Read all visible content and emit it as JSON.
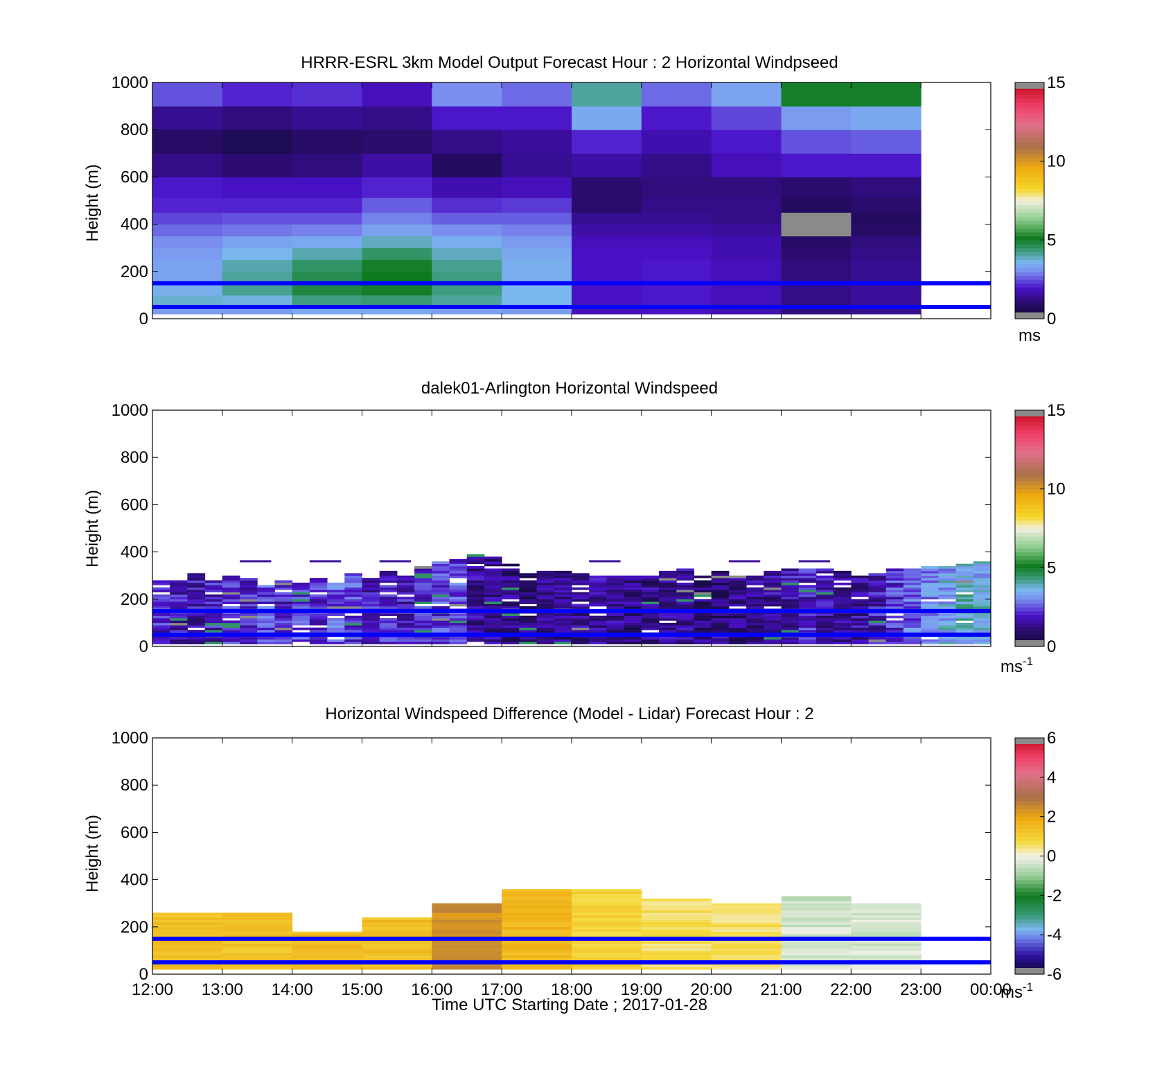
{
  "chart_data": [
    {
      "type": "heatmap",
      "title": "HRRR-ESRL 3km Model Output   Forecast Hour : 2 Horizontal Windpseed",
      "ylabel": "Height (m)",
      "ylim": [
        0,
        1000
      ],
      "yticks": [
        "0",
        "200",
        "400",
        "600",
        "800",
        "1000"
      ],
      "xticks": [
        "12:00",
        "13:00",
        "14:00",
        "15:00",
        "16:00",
        "17:00",
        "18:00",
        "19:00",
        "20:00",
        "21:00",
        "22:00",
        "23:00",
        "00:00"
      ],
      "colorbar": {
        "ticks": [
          "0",
          "5",
          "10",
          "15"
        ],
        "unit": "ms",
        "unit_sup": "",
        "range": [
          0,
          15
        ]
      },
      "reference_lines_m": [
        150,
        50
      ],
      "reference_line_color": "#0000ff",
      "model_hours": [
        "12:00",
        "13:00",
        "14:00",
        "15:00",
        "16:00",
        "17:00",
        "18:00",
        "19:00",
        "20:00",
        "21:00",
        "22:00"
      ],
      "model_levels_m": [
        25,
        75,
        125,
        175,
        225,
        275,
        325,
        375,
        425,
        475,
        550,
        650,
        750,
        850,
        950
      ],
      "model_speed_ms": [
        [
          3.2,
          3.2,
          3.4,
          3.4,
          3.3,
          3.2,
          1.8,
          1.9,
          1.7,
          1.2,
          1.4
        ],
        [
          3.8,
          3.7,
          4.3,
          4.4,
          4.1,
          3.6,
          1.9,
          2.0,
          1.8,
          1.3,
          1.5
        ],
        [
          3.5,
          4.2,
          4.8,
          5.0,
          4.3,
          3.6,
          1.9,
          2.0,
          1.8,
          1.3,
          1.5
        ],
        [
          3.3,
          4.1,
          4.7,
          5.1,
          4.3,
          3.5,
          1.9,
          2.0,
          1.8,
          1.2,
          1.4
        ],
        [
          3.3,
          4.0,
          4.5,
          5.0,
          4.2,
          3.5,
          1.9,
          2.0,
          1.8,
          1.2,
          1.4
        ],
        [
          3.2,
          3.6,
          4.0,
          4.5,
          3.9,
          3.4,
          1.9,
          1.9,
          1.7,
          1.1,
          1.3
        ],
        [
          3.0,
          3.3,
          3.4,
          3.9,
          3.5,
          3.2,
          1.8,
          1.8,
          1.7,
          0.9,
          1.2
        ],
        [
          2.7,
          2.8,
          2.9,
          3.3,
          3.0,
          2.9,
          1.6,
          1.6,
          1.5,
          6.8,
          0.9
        ],
        [
          2.4,
          2.5,
          2.5,
          2.9,
          2.6,
          2.6,
          1.4,
          1.4,
          1.3,
          6.8,
          0.8
        ],
        [
          2.1,
          2.1,
          2.1,
          2.6,
          2.2,
          2.3,
          1.0,
          1.3,
          1.3,
          0.8,
          1.0
        ],
        [
          2.0,
          1.9,
          1.9,
          2.1,
          1.7,
          1.8,
          1.0,
          1.2,
          1.2,
          1.0,
          1.2
        ],
        [
          1.3,
          1.1,
          1.2,
          1.6,
          0.8,
          1.4,
          1.6,
          1.3,
          1.8,
          2.0,
          2.0
        ],
        [
          0.9,
          0.6,
          0.9,
          1.0,
          1.3,
          1.5,
          2.1,
          1.7,
          2.0,
          2.5,
          2.6
        ],
        [
          1.4,
          1.2,
          1.4,
          1.3,
          2.0,
          2.0,
          3.4,
          2.0,
          2.4,
          3.2,
          3.4
        ],
        [
          2.5,
          2.1,
          2.2,
          1.8,
          3.0,
          2.7,
          4.1,
          2.7,
          3.3,
          5.0,
          5.0
        ]
      ]
    },
    {
      "type": "heatmap",
      "title": "dalek01-Arlington  Horizontal Windspeed",
      "ylabel": "Height (m)",
      "ylim": [
        0,
        1000
      ],
      "yticks": [
        "0",
        "200",
        "400",
        "600",
        "800",
        "1000"
      ],
      "xticks": [],
      "colorbar": {
        "ticks": [
          "0",
          "5",
          "10",
          "15"
        ],
        "unit": "ms",
        "unit_sup": "-1",
        "range": [
          0,
          15
        ]
      },
      "reference_lines_m": [
        150,
        50
      ],
      "reference_line_color": "#0000ff",
      "lidar_step_hours": 0.25,
      "lidar_profile_top_m": [
        280,
        280,
        310,
        280,
        300,
        290,
        260,
        280,
        270,
        290,
        270,
        310,
        300,
        320,
        300,
        340,
        360,
        370,
        390,
        380,
        350,
        310,
        320,
        320,
        310,
        300,
        300,
        300,
        300,
        320,
        330,
        300,
        320,
        300,
        300,
        320,
        330,
        330,
        330,
        320,
        300,
        310,
        330,
        330,
        340,
        340,
        350,
        360
      ],
      "lidar_profile_base_speed_ms": [
        2.0,
        1.8,
        1.7,
        1.9,
        2.2,
        2.1,
        2.4,
        2.0,
        2.3,
        2.1,
        2.6,
        2.3,
        1.9,
        2.0,
        1.8,
        2.1,
        2.3,
        2.5,
        1.4,
        1.3,
        1.2,
        1.1,
        1.2,
        1.3,
        1.4,
        1.5,
        1.3,
        1.2,
        1.3,
        1.4,
        1.3,
        1.2,
        1.1,
        1.2,
        1.3,
        1.5,
        1.7,
        2.0,
        1.6,
        1.4,
        1.5,
        1.8,
        2.2,
        2.7,
        3.0,
        3.4,
        3.8,
        3.6
      ]
    },
    {
      "type": "heatmap",
      "title": "Horizontal Windspeed Difference (Model - Lidar) Forecast Hour : 2",
      "ylabel": "Height (m)",
      "xlabel": "Time UTC  Starting Date ; 2017-01-28",
      "ylim": [
        0,
        1000
      ],
      "yticks": [
        "0",
        "200",
        "400",
        "600",
        "800",
        "1000"
      ],
      "xticks": [
        "12:00",
        "13:00",
        "14:00",
        "15:00",
        "16:00",
        "17:00",
        "18:00",
        "19:00",
        "20:00",
        "21:00",
        "22:00",
        "23:00",
        "00:00"
      ],
      "colorbar": {
        "ticks": [
          "-6",
          "-4",
          "-2",
          "0",
          "2",
          "4",
          "6"
        ],
        "unit": "ms",
        "unit_sup": "-1",
        "range": [
          -6,
          6
        ]
      },
      "reference_lines_m": [
        150,
        50
      ],
      "reference_line_color": "#0000ff",
      "diff_hours": [
        "12:00",
        "13:00",
        "14:00",
        "15:00",
        "16:00",
        "17:00",
        "18:00",
        "19:00",
        "20:00",
        "21:00",
        "22:00"
      ],
      "diff_top_m": [
        260,
        260,
        180,
        240,
        300,
        360,
        360,
        320,
        300,
        330,
        300
      ],
      "diff_ms": [
        1.4,
        1.3,
        1.5,
        1.4,
        2.4,
        1.6,
        0.9,
        0.6,
        0.6,
        -0.4,
        -0.3
      ]
    }
  ]
}
